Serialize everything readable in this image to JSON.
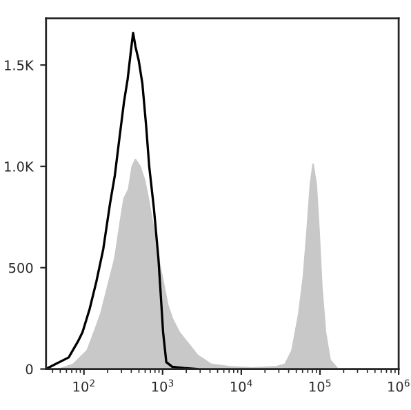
{
  "chart_data": {
    "type": "area",
    "log": "x",
    "grid": false,
    "xlim": [
      33,
      1000000
    ],
    "xticks": [
      {
        "value": 100,
        "label": "10$^{2}$"
      },
      {
        "value": 1000,
        "label": "10$^{3}$"
      },
      {
        "value": 10000,
        "label": "10$^{4}$"
      },
      {
        "value": 100000,
        "label": "10$^{5}$"
      },
      {
        "value": 1000000,
        "label": "10$^{6}$"
      }
    ],
    "ylim": [
      0,
      1730
    ],
    "yticks": [
      0,
      500,
      {
        "value": 1000,
        "label": "1.0K"
      },
      {
        "value": 1500,
        "label": "1.5K"
      }
    ],
    "series": [
      {
        "color": "#c8c8c8",
        "x": [
          49,
          73,
          110,
          135,
          164,
          201,
          247,
          290,
          323,
          369,
          411,
          452,
          517,
          591,
          676,
          774,
          885,
          1014,
          1159,
          1327,
          1625,
          2125,
          2780,
          4170,
          7140,
          14000,
          27500,
          36000,
          44000,
          53800,
          61500,
          68500,
          75400,
          81700,
          89800,
          97300,
          105500,
          117500,
          134500,
          169000,
          1000000
        ],
        "values": [
          0,
          23,
          91,
          182,
          273,
          409,
          545,
          727,
          841,
          886,
          1000,
          1034,
          1000,
          932,
          818,
          682,
          545,
          432,
          318,
          250,
          182,
          125,
          68,
          23,
          11,
          5,
          11,
          23,
          91,
          273,
          455,
          682,
          909,
          1011,
          909,
          682,
          409,
          182,
          45,
          0,
          0
        ]
      },
      {
        "type": "line",
        "color": "#000000",
        "x": [
          33,
          43,
          64,
          84,
          96,
          118,
          144,
          176,
          215,
          247,
          282,
          323,
          360,
          395,
          422,
          452,
          497,
          553,
          616,
          676,
          774,
          885,
          948,
          1014,
          1114,
          1327,
          1858,
          2780
        ],
        "values": [
          0,
          23,
          57,
          136,
          182,
          295,
          432,
          591,
          818,
          955,
          1136,
          1318,
          1432,
          1568,
          1659,
          1591,
          1523,
          1409,
          1205,
          1000,
          795,
          545,
          364,
          182,
          34,
          11,
          5,
          0
        ]
      }
    ]
  }
}
